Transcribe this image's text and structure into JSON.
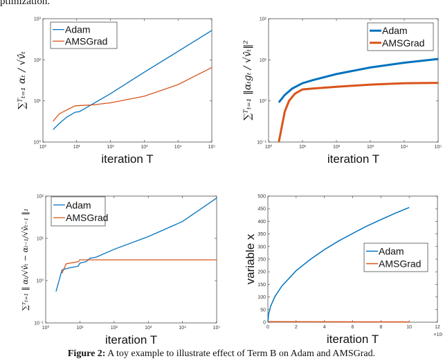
{
  "top_text": "ptimization.",
  "caption": {
    "label": "Figure 2:",
    "text": " A toy example to illustrate effect of Term B on Adam and AMSGrad."
  },
  "colors": {
    "Adam": "#0072BD",
    "AMSGrad": "#D95319"
  },
  "chart_data": [
    {
      "type": "line",
      "xscale": "log",
      "yscale": "log",
      "xlim": [
        1,
        100000
      ],
      "ylim": [
        1,
        1000
      ],
      "xticks": [
        1,
        10,
        100,
        1000,
        10000,
        100000
      ],
      "xticklabels": [
        "10⁰",
        "10¹",
        "10²",
        "10³",
        "10⁴",
        "10⁵"
      ],
      "yticks": [
        1,
        10,
        100,
        1000
      ],
      "yticklabels": [
        "10⁰",
        "10¹",
        "10²",
        "10³"
      ],
      "xlabel": "iteration T",
      "ylabel": "∑ᵀₜ₌₁ αₜ / √v̂ₜ",
      "legend": "top-left",
      "series": [
        {
          "name": "Adam",
          "x": [
            2,
            3,
            5,
            9,
            12,
            20,
            30,
            100,
            1000,
            10000,
            100000
          ],
          "y": [
            2,
            2.8,
            4,
            5.3,
            5.5,
            7,
            8.5,
            15,
            50,
            160,
            520
          ]
        },
        {
          "name": "AMSGrad",
          "x": [
            2,
            3,
            5,
            9,
            30,
            100,
            1000,
            10000,
            100000
          ],
          "y": [
            3.2,
            4.8,
            6,
            7.6,
            8,
            9,
            13,
            25,
            65
          ]
        }
      ]
    },
    {
      "type": "line",
      "xscale": "log",
      "yscale": "log",
      "xlim": [
        1,
        100000
      ],
      "ylim": [
        0.1,
        100
      ],
      "xticks": [
        1,
        10,
        100,
        1000,
        10000,
        100000
      ],
      "xticklabels": [
        "10⁰",
        "10¹",
        "10²",
        "10³",
        "10⁴",
        "10⁵"
      ],
      "yticks": [
        0.1,
        1,
        10,
        100
      ],
      "yticklabels": [
        "10⁻¹",
        "10⁰",
        "10¹",
        "10²"
      ],
      "xlabel": "iteration T",
      "ylabel": "∑ᵀₜ₌₁ ‖αₜgₜ / √v̂ₜ‖²",
      "legend": "top-right",
      "series": [
        {
          "name": "Adam",
          "x": [
            2,
            3,
            5,
            10,
            20,
            100,
            1000,
            10000,
            100000
          ],
          "y": [
            0.92,
            1.4,
            2,
            2.7,
            3.2,
            4.5,
            6.5,
            8.5,
            10.5
          ]
        },
        {
          "name": "AMSGrad",
          "x": [
            2,
            3,
            4,
            6,
            10,
            20,
            100,
            1000,
            10000,
            100000
          ],
          "y": [
            0.1,
            0.55,
            1,
            1.5,
            1.9,
            2.0,
            2.2,
            2.5,
            2.7,
            2.75
          ]
        }
      ]
    },
    {
      "type": "line",
      "xscale": "log",
      "yscale": "log",
      "xlim": [
        1,
        100000
      ],
      "ylim": [
        0.1,
        100
      ],
      "xticks": [
        1,
        10,
        100,
        1000,
        10000,
        100000
      ],
      "xticklabels": [
        "10⁰",
        "10¹",
        "10²",
        "10³",
        "10⁴",
        "10⁵"
      ],
      "yticks": [
        0.1,
        1,
        10,
        100
      ],
      "yticklabels": [
        "10⁻¹",
        "10⁰",
        "10¹",
        "10²"
      ],
      "xlabel": "iteration T",
      "ylabel": "∑ᵀₜ₌₁ ‖ αₜ/√v̂ₜ − αₜ₋₁/√v̂ₜ₋₁ ‖₁",
      "legend": "top-left",
      "series": [
        {
          "name": "Adam",
          "x": [
            2,
            3,
            5,
            9,
            10,
            15,
            20,
            30,
            100,
            1000,
            10000,
            100000
          ],
          "y": [
            0.55,
            1.8,
            2.0,
            2.2,
            2.6,
            2.8,
            3.4,
            3.6,
            5.5,
            11,
            25,
            90
          ]
        },
        {
          "name": "AMSGrad",
          "x": [
            3,
            4,
            9,
            10,
            100000
          ],
          "y": [
            1.5,
            2.5,
            2.8,
            3.1,
            3.1
          ]
        }
      ]
    },
    {
      "type": "line",
      "xscale": "linear",
      "yscale": "linear",
      "xlim": [
        0,
        12
      ],
      "ylim": [
        0,
        500
      ],
      "xticks": [
        0,
        2,
        4,
        6,
        8,
        10,
        12
      ],
      "xticklabels": [
        "0",
        "2",
        "4",
        "6",
        "8",
        "10",
        "12"
      ],
      "yticks": [
        0,
        50,
        100,
        150,
        200,
        250,
        300,
        350,
        400,
        450,
        500
      ],
      "yticklabels": [
        "0",
        "50",
        "100",
        "150",
        "200",
        "250",
        "300",
        "350",
        "400",
        "450",
        "500"
      ],
      "x_multiplier": "×10⁴",
      "xlabel": "iteration T",
      "ylabel": "variable x",
      "legend": "center-right",
      "series": [
        {
          "name": "Adam",
          "x": [
            0,
            0.05,
            0.2,
            0.5,
            1,
            2,
            3,
            4,
            5,
            6,
            7,
            8,
            9,
            10
          ],
          "y": [
            0,
            32,
            64,
            102,
            144,
            204,
            249,
            288,
            322,
            352,
            381,
            407,
            432,
            455
          ]
        },
        {
          "name": "AMSGrad",
          "x": [
            0,
            10
          ],
          "y": [
            2,
            1
          ]
        }
      ]
    }
  ]
}
